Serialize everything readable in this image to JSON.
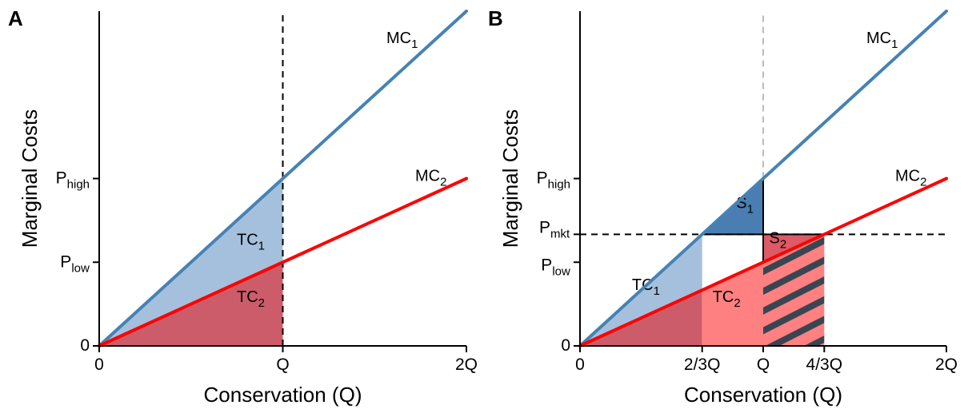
{
  "colors": {
    "mc1": "#4682b4",
    "mc2": "#ff0000",
    "tc1_fill": "#a5c0dc",
    "tc2_fill": "#cd5c6a",
    "tc2_fill_b": "#ff8080",
    "s1_fill": "#4a7eb2",
    "s2_fill": "#dd5a66",
    "hatch": "#3a4552"
  },
  "chart_data": [
    {
      "type": "line",
      "panel": "A",
      "xlabel": "Conservation (Q)",
      "ylabel": "Marginal Costs",
      "xlim": [
        0,
        2
      ],
      "ylim": [
        0,
        2
      ],
      "x_ticks": [
        {
          "value": 0,
          "label": "0"
        },
        {
          "value": 1,
          "label": "Q"
        },
        {
          "value": 2,
          "label": "2Q"
        }
      ],
      "y_ticks": [
        {
          "value": 0,
          "label": "0",
          "sub": ""
        },
        {
          "value": 0.5,
          "label": "P",
          "sub": "low"
        },
        {
          "value": 1.0,
          "label": "P",
          "sub": "high"
        }
      ],
      "series": [
        {
          "name": "MC",
          "sub": "1",
          "x": [
            0,
            2
          ],
          "y": [
            0,
            2
          ]
        },
        {
          "name": "MC",
          "sub": "2",
          "x": [
            0,
            2
          ],
          "y": [
            0,
            1
          ]
        }
      ],
      "areas": [
        {
          "label": "TC",
          "sub": "1",
          "description_x": [
            0,
            1
          ]
        },
        {
          "label": "TC",
          "sub": "2",
          "description_x": [
            0,
            1
          ]
        }
      ],
      "vline_dashed_at": 1
    },
    {
      "type": "line",
      "panel": "B",
      "xlabel": "Conservation (Q)",
      "ylabel": "Marginal Costs",
      "xlim": [
        0,
        2
      ],
      "ylim": [
        0,
        2
      ],
      "x_ticks": [
        {
          "value": 0,
          "label": "0"
        },
        {
          "value": 0.6667,
          "label": "2/3Q"
        },
        {
          "value": 1,
          "label": "Q"
        },
        {
          "value": 1.3333,
          "label": "4/3Q"
        },
        {
          "value": 2,
          "label": "2Q"
        }
      ],
      "y_ticks": [
        {
          "value": 0,
          "label": "0",
          "sub": ""
        },
        {
          "value": 0.5,
          "label": "P",
          "sub": "low"
        },
        {
          "value": 0.6667,
          "label": "P",
          "sub": "mkt"
        },
        {
          "value": 1.0,
          "label": "P",
          "sub": "high"
        }
      ],
      "series": [
        {
          "name": "MC",
          "sub": "1",
          "x": [
            0,
            2
          ],
          "y": [
            0,
            2
          ]
        },
        {
          "name": "MC",
          "sub": "2",
          "x": [
            0,
            2
          ],
          "y": [
            0,
            1
          ]
        }
      ],
      "areas": [
        {
          "label": "TC",
          "sub": "1"
        },
        {
          "label": "TC",
          "sub": "2"
        },
        {
          "label": "S",
          "sub": "1"
        },
        {
          "label": "S",
          "sub": "2"
        }
      ],
      "hline_dashed_at": 0.6667,
      "vline_dashed_at": 1
    }
  ]
}
